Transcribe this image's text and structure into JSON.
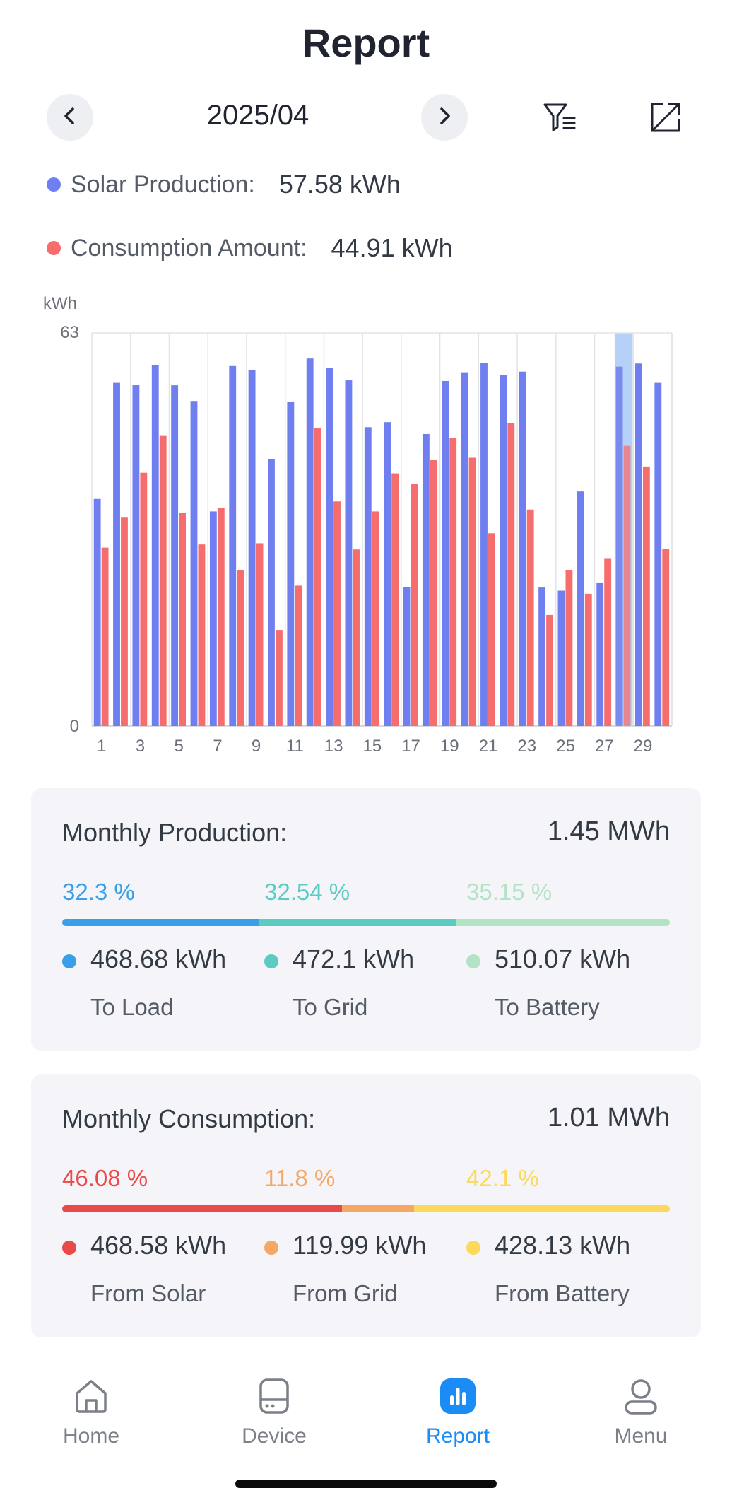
{
  "header": {
    "title": "Report",
    "period": "2025/04"
  },
  "summary": {
    "solar_label": "Solar Production:",
    "solar_value": "57.58 kWh",
    "consumption_label": "Consumption Amount:",
    "consumption_value": "44.91 kWh",
    "solar_color": "#6f7ff0",
    "consumption_color": "#f56d6d"
  },
  "chart_data": {
    "type": "bar",
    "ylabel": "kWh",
    "ylim": [
      0,
      63
    ],
    "y_ticks": [
      "0",
      "63"
    ],
    "x_tick_labels": [
      "1",
      "3",
      "5",
      "7",
      "9",
      "11",
      "13",
      "15",
      "17",
      "19",
      "21",
      "23",
      "25",
      "27",
      "29"
    ],
    "categories": [
      1,
      2,
      3,
      4,
      5,
      6,
      7,
      8,
      9,
      10,
      11,
      12,
      13,
      14,
      15,
      16,
      17,
      18,
      19,
      20,
      21,
      22,
      23,
      24,
      25,
      26,
      27,
      28,
      29,
      30
    ],
    "series": [
      {
        "name": "Solar Production",
        "color": "#6f7ff0",
        "values": [
          36.4,
          55.0,
          54.7,
          57.9,
          54.6,
          52.1,
          34.4,
          57.7,
          57.0,
          42.8,
          52.0,
          58.9,
          57.4,
          55.4,
          47.9,
          48.7,
          22.3,
          46.8,
          55.3,
          56.7,
          58.2,
          56.2,
          56.8,
          22.2,
          21.7,
          37.6,
          22.9,
          57.6,
          58.1,
          55.0
        ]
      },
      {
        "name": "Consumption Amount",
        "color": "#f56d6d",
        "values": [
          28.6,
          33.4,
          40.6,
          46.5,
          34.2,
          29.1,
          35.0,
          25.0,
          29.3,
          15.4,
          22.5,
          47.8,
          36.0,
          28.3,
          34.4,
          40.5,
          38.8,
          42.6,
          46.2,
          43.0,
          30.9,
          48.6,
          34.7,
          17.8,
          25.0,
          21.2,
          26.8,
          44.91,
          41.6,
          28.4
        ]
      }
    ],
    "highlight_day": 28,
    "grid": true
  },
  "production": {
    "title": "Monthly Production:",
    "total": "1.45 MWh",
    "segments": [
      {
        "pct_label": "32.3 %",
        "pct": 32.3,
        "value": "468.68 kWh",
        "name": "To Load",
        "color": "#3a9ee8"
      },
      {
        "pct_label": "32.54 %",
        "pct": 32.54,
        "value": "472.1 kWh",
        "name": "To Grid",
        "color": "#5ccbc2"
      },
      {
        "pct_label": "35.15 %",
        "pct": 35.15,
        "value": "510.07 kWh",
        "name": "To Battery",
        "color": "#b3e3c6"
      }
    ]
  },
  "consumption": {
    "title": "Monthly Consumption:",
    "total": "1.01 MWh",
    "segments": [
      {
        "pct_label": "46.08 %",
        "pct": 46.08,
        "value": "468.58 kWh",
        "name": "From Solar",
        "color": "#e84a4a"
      },
      {
        "pct_label": "11.8 %",
        "pct": 11.8,
        "value": "119.99 kWh",
        "name": "From Grid",
        "color": "#f5a766"
      },
      {
        "pct_label": "42.1 %",
        "pct": 42.1,
        "value": "428.13 kWh",
        "name": "From Battery",
        "color": "#fcd95c"
      }
    ]
  },
  "tabbar": {
    "home": "Home",
    "device": "Device",
    "report": "Report",
    "menu": "Menu",
    "active_color": "#1b8bf5"
  }
}
